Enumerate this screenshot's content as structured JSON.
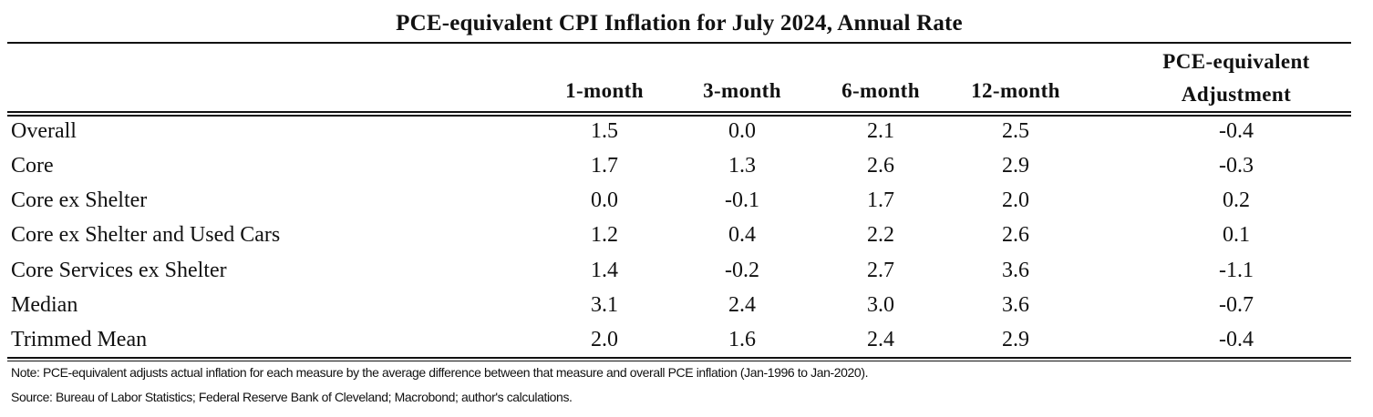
{
  "table": {
    "title": "PCE-equivalent CPI Inflation for July 2024, Annual Rate",
    "headers": {
      "h1": "1-month",
      "h2": "3-month",
      "h3": "6-month",
      "h4": "12-month",
      "h5_line1": "PCE-equivalent",
      "h5_line2": "Adjustment"
    },
    "rows": [
      {
        "label": "Overall",
        "m1": "1.5",
        "m3": "0.0",
        "m6": "2.1",
        "m12": "2.5",
        "adj": "-0.4"
      },
      {
        "label": "Core",
        "m1": "1.7",
        "m3": "1.3",
        "m6": "2.6",
        "m12": "2.9",
        "adj": "-0.3"
      },
      {
        "label": "Core ex Shelter",
        "m1": "0.0",
        "m3": "-0.1",
        "m6": "1.7",
        "m12": "2.0",
        "adj": "0.2"
      },
      {
        "label": "Core ex Shelter and Used Cars",
        "m1": "1.2",
        "m3": "0.4",
        "m6": "2.2",
        "m12": "2.6",
        "adj": "0.1"
      },
      {
        "label": "Core Services ex Shelter",
        "m1": "1.4",
        "m3": "-0.2",
        "m6": "2.7",
        "m12": "3.6",
        "adj": "-1.1"
      },
      {
        "label": "Median",
        "m1": "3.1",
        "m3": "2.4",
        "m6": "3.0",
        "m12": "3.6",
        "adj": "-0.7"
      },
      {
        "label": "Trimmed Mean",
        "m1": "2.0",
        "m3": "1.6",
        "m6": "2.4",
        "m12": "2.9",
        "adj": "-0.4"
      }
    ],
    "note": "Note: PCE-equivalent adjusts actual inflation for each measure by the average difference between that measure and overall PCE inflation (Jan-1996 to Jan-2020).",
    "source": "Source: Bureau of Labor Statistics;  Federal Reserve Bank of Cleveland; Macrobond; author's calculations."
  }
}
